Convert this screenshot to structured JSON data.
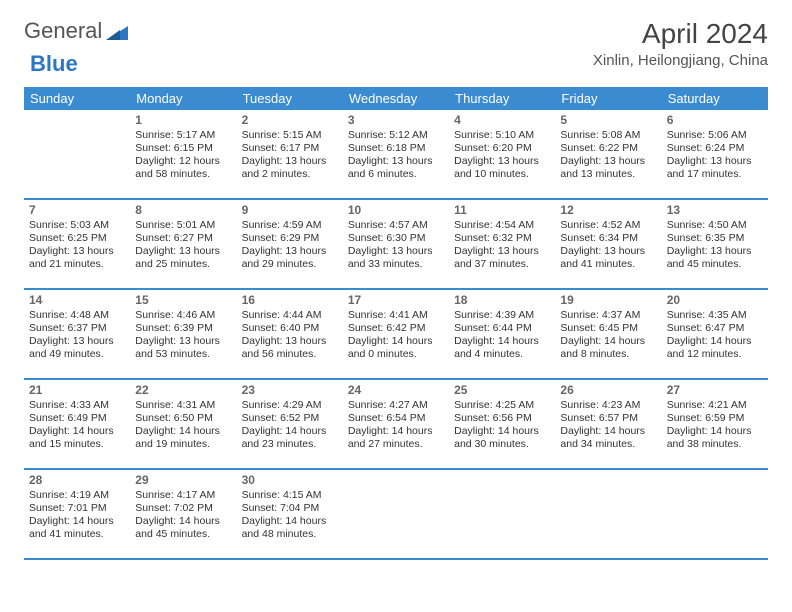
{
  "logo": {
    "text1": "General",
    "text2": "Blue"
  },
  "header": {
    "month": "April 2024",
    "location": "Xinlin, Heilongjiang, China"
  },
  "colors": {
    "headerBg": "#3b8bd1",
    "headerText": "#ffffff",
    "rowBorder": "#3b8bd1",
    "logoBlue": "#2d78c4",
    "body": "#333333"
  },
  "dayHeaders": [
    "Sunday",
    "Monday",
    "Tuesday",
    "Wednesday",
    "Thursday",
    "Friday",
    "Saturday"
  ],
  "weeks": [
    [
      {
        "empty": true
      },
      {
        "num": "1",
        "sunrise": "Sunrise: 5:17 AM",
        "sunset": "Sunset: 6:15 PM",
        "daylight": "Daylight: 12 hours and 58 minutes."
      },
      {
        "num": "2",
        "sunrise": "Sunrise: 5:15 AM",
        "sunset": "Sunset: 6:17 PM",
        "daylight": "Daylight: 13 hours and 2 minutes."
      },
      {
        "num": "3",
        "sunrise": "Sunrise: 5:12 AM",
        "sunset": "Sunset: 6:18 PM",
        "daylight": "Daylight: 13 hours and 6 minutes."
      },
      {
        "num": "4",
        "sunrise": "Sunrise: 5:10 AM",
        "sunset": "Sunset: 6:20 PM",
        "daylight": "Daylight: 13 hours and 10 minutes."
      },
      {
        "num": "5",
        "sunrise": "Sunrise: 5:08 AM",
        "sunset": "Sunset: 6:22 PM",
        "daylight": "Daylight: 13 hours and 13 minutes."
      },
      {
        "num": "6",
        "sunrise": "Sunrise: 5:06 AM",
        "sunset": "Sunset: 6:24 PM",
        "daylight": "Daylight: 13 hours and 17 minutes."
      }
    ],
    [
      {
        "num": "7",
        "sunrise": "Sunrise: 5:03 AM",
        "sunset": "Sunset: 6:25 PM",
        "daylight": "Daylight: 13 hours and 21 minutes."
      },
      {
        "num": "8",
        "sunrise": "Sunrise: 5:01 AM",
        "sunset": "Sunset: 6:27 PM",
        "daylight": "Daylight: 13 hours and 25 minutes."
      },
      {
        "num": "9",
        "sunrise": "Sunrise: 4:59 AM",
        "sunset": "Sunset: 6:29 PM",
        "daylight": "Daylight: 13 hours and 29 minutes."
      },
      {
        "num": "10",
        "sunrise": "Sunrise: 4:57 AM",
        "sunset": "Sunset: 6:30 PM",
        "daylight": "Daylight: 13 hours and 33 minutes."
      },
      {
        "num": "11",
        "sunrise": "Sunrise: 4:54 AM",
        "sunset": "Sunset: 6:32 PM",
        "daylight": "Daylight: 13 hours and 37 minutes."
      },
      {
        "num": "12",
        "sunrise": "Sunrise: 4:52 AM",
        "sunset": "Sunset: 6:34 PM",
        "daylight": "Daylight: 13 hours and 41 minutes."
      },
      {
        "num": "13",
        "sunrise": "Sunrise: 4:50 AM",
        "sunset": "Sunset: 6:35 PM",
        "daylight": "Daylight: 13 hours and 45 minutes."
      }
    ],
    [
      {
        "num": "14",
        "sunrise": "Sunrise: 4:48 AM",
        "sunset": "Sunset: 6:37 PM",
        "daylight": "Daylight: 13 hours and 49 minutes."
      },
      {
        "num": "15",
        "sunrise": "Sunrise: 4:46 AM",
        "sunset": "Sunset: 6:39 PM",
        "daylight": "Daylight: 13 hours and 53 minutes."
      },
      {
        "num": "16",
        "sunrise": "Sunrise: 4:44 AM",
        "sunset": "Sunset: 6:40 PM",
        "daylight": "Daylight: 13 hours and 56 minutes."
      },
      {
        "num": "17",
        "sunrise": "Sunrise: 4:41 AM",
        "sunset": "Sunset: 6:42 PM",
        "daylight": "Daylight: 14 hours and 0 minutes."
      },
      {
        "num": "18",
        "sunrise": "Sunrise: 4:39 AM",
        "sunset": "Sunset: 6:44 PM",
        "daylight": "Daylight: 14 hours and 4 minutes."
      },
      {
        "num": "19",
        "sunrise": "Sunrise: 4:37 AM",
        "sunset": "Sunset: 6:45 PM",
        "daylight": "Daylight: 14 hours and 8 minutes."
      },
      {
        "num": "20",
        "sunrise": "Sunrise: 4:35 AM",
        "sunset": "Sunset: 6:47 PM",
        "daylight": "Daylight: 14 hours and 12 minutes."
      }
    ],
    [
      {
        "num": "21",
        "sunrise": "Sunrise: 4:33 AM",
        "sunset": "Sunset: 6:49 PM",
        "daylight": "Daylight: 14 hours and 15 minutes."
      },
      {
        "num": "22",
        "sunrise": "Sunrise: 4:31 AM",
        "sunset": "Sunset: 6:50 PM",
        "daylight": "Daylight: 14 hours and 19 minutes."
      },
      {
        "num": "23",
        "sunrise": "Sunrise: 4:29 AM",
        "sunset": "Sunset: 6:52 PM",
        "daylight": "Daylight: 14 hours and 23 minutes."
      },
      {
        "num": "24",
        "sunrise": "Sunrise: 4:27 AM",
        "sunset": "Sunset: 6:54 PM",
        "daylight": "Daylight: 14 hours and 27 minutes."
      },
      {
        "num": "25",
        "sunrise": "Sunrise: 4:25 AM",
        "sunset": "Sunset: 6:56 PM",
        "daylight": "Daylight: 14 hours and 30 minutes."
      },
      {
        "num": "26",
        "sunrise": "Sunrise: 4:23 AM",
        "sunset": "Sunset: 6:57 PM",
        "daylight": "Daylight: 14 hours and 34 minutes."
      },
      {
        "num": "27",
        "sunrise": "Sunrise: 4:21 AM",
        "sunset": "Sunset: 6:59 PM",
        "daylight": "Daylight: 14 hours and 38 minutes."
      }
    ],
    [
      {
        "num": "28",
        "sunrise": "Sunrise: 4:19 AM",
        "sunset": "Sunset: 7:01 PM",
        "daylight": "Daylight: 14 hours and 41 minutes."
      },
      {
        "num": "29",
        "sunrise": "Sunrise: 4:17 AM",
        "sunset": "Sunset: 7:02 PM",
        "daylight": "Daylight: 14 hours and 45 minutes."
      },
      {
        "num": "30",
        "sunrise": "Sunrise: 4:15 AM",
        "sunset": "Sunset: 7:04 PM",
        "daylight": "Daylight: 14 hours and 48 minutes."
      },
      {
        "empty": true
      },
      {
        "empty": true
      },
      {
        "empty": true
      },
      {
        "empty": true
      }
    ]
  ]
}
